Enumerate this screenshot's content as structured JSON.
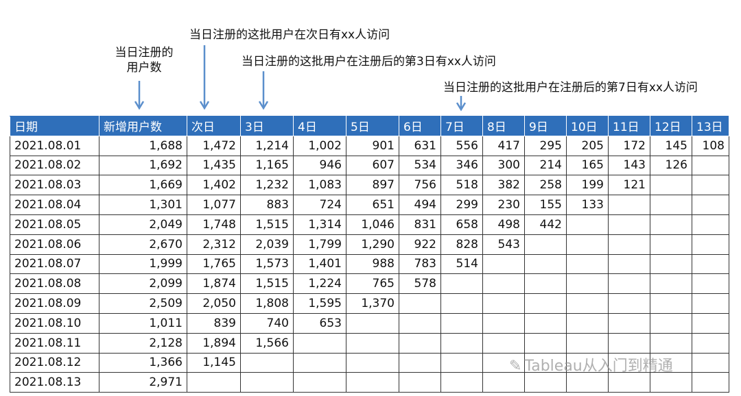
{
  "annotations": [
    "当日注册的用户数",
    "当日注册的这批用户在次日有xx人访问",
    "当日注册的这批用户在注册后的第3日有xx人访问",
    "当日注册的这批用户在注册后的第7日有xx人访问"
  ],
  "table": {
    "headers": [
      "日期",
      "新增用户数",
      "次日",
      "3日",
      "4日",
      "5日",
      "6日",
      "7日",
      "8日",
      "9日",
      "10日",
      "11日",
      "12日",
      "13日"
    ],
    "rows": [
      [
        "2021.08.01",
        "1,688",
        "1,472",
        "1,214",
        "1,002",
        "901",
        "631",
        "556",
        "417",
        "295",
        "205",
        "172",
        "145",
        "108"
      ],
      [
        "2021.08.02",
        "1,692",
        "1,435",
        "1,165",
        "946",
        "607",
        "534",
        "346",
        "300",
        "214",
        "165",
        "143",
        "126",
        ""
      ],
      [
        "2021.08.03",
        "1,669",
        "1,402",
        "1,232",
        "1,083",
        "897",
        "756",
        "518",
        "382",
        "258",
        "199",
        "121",
        "",
        ""
      ],
      [
        "2021.08.04",
        "1,301",
        "1,077",
        "883",
        "724",
        "651",
        "494",
        "299",
        "230",
        "155",
        "133",
        "",
        "",
        ""
      ],
      [
        "2021.08.05",
        "2,049",
        "1,748",
        "1,515",
        "1,314",
        "1,046",
        "831",
        "658",
        "498",
        "442",
        "",
        "",
        "",
        ""
      ],
      [
        "2021.08.06",
        "2,670",
        "2,312",
        "2,039",
        "1,799",
        "1,290",
        "922",
        "828",
        "543",
        "",
        "",
        "",
        "",
        ""
      ],
      [
        "2021.08.07",
        "1,999",
        "1,765",
        "1,573",
        "1,401",
        "988",
        "783",
        "514",
        "",
        "",
        "",
        "",
        "",
        ""
      ],
      [
        "2021.08.08",
        "2,099",
        "1,874",
        "1,515",
        "1,224",
        "765",
        "578",
        "",
        "",
        "",
        "",
        "",
        "",
        ""
      ],
      [
        "2021.08.09",
        "2,509",
        "2,050",
        "1,808",
        "1,595",
        "1,370",
        "",
        "",
        "",
        "",
        "",
        "",
        "",
        ""
      ],
      [
        "2021.08.10",
        "1,011",
        "839",
        "740",
        "653",
        "",
        "",
        "",
        "",
        "",
        "",
        "",
        "",
        ""
      ],
      [
        "2021.08.11",
        "2,128",
        "1,894",
        "1,566",
        "",
        "",
        "",
        "",
        "",
        "",
        "",
        "",
        "",
        ""
      ],
      [
        "2021.08.12",
        "1,366",
        "1,145",
        "",
        "",
        "",
        "",
        "",
        "",
        "",
        "",
        "",
        "",
        ""
      ],
      [
        "2021.08.13",
        "2,971",
        "",
        "",
        "",
        "",
        "",
        "",
        "",
        "",
        "",
        "",
        "",
        ""
      ]
    ]
  },
  "watermark": {
    "icon": "wechat-icon",
    "text": "Tableau从入门到精通"
  },
  "colors": {
    "header_bg": "#2f6fba",
    "arrow": "#5b8fcc"
  }
}
